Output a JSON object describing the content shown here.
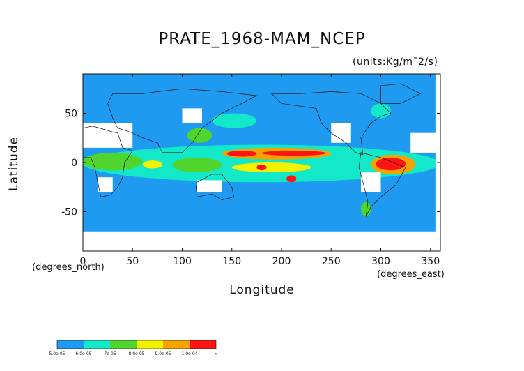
{
  "chart_data": {
    "type": "heatmap",
    "title": "PRATE_1968-MAM_NCEP",
    "units_label": "(units:Kg/m¯2/s)",
    "xlabel": "Longitude",
    "ylabel": "Latitude",
    "x_units_label": "(degrees_east)",
    "y_units_label": "(degrees_north)",
    "xlim": [
      0,
      360
    ],
    "ylim": [
      -90,
      90
    ],
    "x_ticks": [
      0,
      50,
      100,
      150,
      200,
      250,
      300,
      350
    ],
    "y_ticks": [
      -50,
      0,
      50
    ],
    "background_level_color": "#1e9bf0",
    "missing_color": "#ffffff",
    "colorbar": {
      "labels": [
        "5.0e-05",
        "6.0e-05",
        "7e-05",
        "8.0e-05",
        "9.0e-05",
        "1.0e-04",
        "∞"
      ],
      "colors": [
        "#1e9bf0",
        "#13e8c8",
        "#4fd52e",
        "#f2f200",
        "#f4a300",
        "#ff1414"
      ]
    },
    "regions": [
      {
        "level": 5,
        "lon": [
          145,
          175
        ],
        "lat": [
          6,
          12
        ]
      },
      {
        "level": 5,
        "lon": [
          180,
          245
        ],
        "lat": [
          7,
          12
        ]
      },
      {
        "level": 5,
        "lon": [
          205,
          215
        ],
        "lat": [
          -20,
          -13
        ]
      },
      {
        "level": 5,
        "lon": [
          295,
          325
        ],
        "lat": [
          -8,
          5
        ]
      },
      {
        "level": 5,
        "lon": [
          175,
          185
        ],
        "lat": [
          -8,
          -2
        ]
      },
      {
        "level": 4,
        "lon": [
          140,
          250
        ],
        "lat": [
          3,
          15
        ]
      },
      {
        "level": 4,
        "lon": [
          290,
          335
        ],
        "lat": [
          -12,
          8
        ]
      },
      {
        "level": 3,
        "lon": [
          150,
          230
        ],
        "lat": [
          -10,
          0
        ]
      },
      {
        "level": 3,
        "lon": [
          60,
          80
        ],
        "lat": [
          -6,
          2
        ]
      },
      {
        "level": 2,
        "lon": [
          0,
          60
        ],
        "lat": [
          -8,
          10
        ]
      },
      {
        "level": 2,
        "lon": [
          90,
          140
        ],
        "lat": [
          -10,
          5
        ]
      },
      {
        "level": 2,
        "lon": [
          105,
          130
        ],
        "lat": [
          20,
          35
        ]
      },
      {
        "level": 2,
        "lon": [
          280,
          290
        ],
        "lat": [
          -55,
          -40
        ]
      },
      {
        "level": 1,
        "lon": [
          0,
          360
        ],
        "lat": [
          -20,
          18
        ]
      },
      {
        "level": 1,
        "lon": [
          130,
          175
        ],
        "lat": [
          35,
          50
        ]
      },
      {
        "level": 1,
        "lon": [
          290,
          310
        ],
        "lat": [
          45,
          60
        ]
      }
    ],
    "missing_regions": [
      {
        "lon": [
          0,
          50
        ],
        "lat": [
          15,
          40
        ]
      },
      {
        "lon": [
          15,
          30
        ],
        "lat": [
          -30,
          -15
        ]
      },
      {
        "lon": [
          115,
          140
        ],
        "lat": [
          -30,
          -18
        ]
      },
      {
        "lon": [
          250,
          270
        ],
        "lat": [
          20,
          40
        ]
      },
      {
        "lon": [
          280,
          300
        ],
        "lat": [
          -30,
          -10
        ]
      },
      {
        "lon": [
          330,
          360
        ],
        "lat": [
          10,
          30
        ]
      },
      {
        "lon": [
          0,
          360
        ],
        "lat": [
          -90,
          -70
        ]
      },
      {
        "lon": [
          100,
          120
        ],
        "lat": [
          40,
          55
        ]
      },
      {
        "lon": [
          355,
          360
        ],
        "lat": [
          -90,
          90
        ]
      }
    ]
  }
}
